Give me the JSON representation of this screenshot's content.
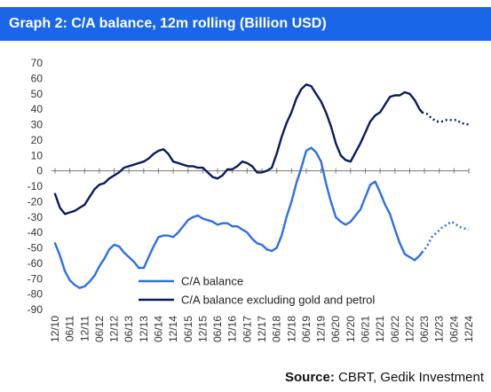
{
  "header": {
    "title": "Graph 2: C/A balance, 12m rolling (Billion USD)",
    "background_color": "#1a66e8",
    "text_color": "#ffffff"
  },
  "source": {
    "label": "Source:",
    "text": "CBRT, Gedik Investment"
  },
  "chart_data": {
    "type": "line",
    "title": "Graph 2: C/A balance, 12m rolling (Billion USD)",
    "xlabel": "",
    "ylabel": "",
    "ylim": [
      -90,
      70
    ],
    "ytick_step": 10,
    "grid": false,
    "legend_position": "bottom-center",
    "x_start": "12/10",
    "x_end": "12/24",
    "x_ticks": [
      "12/10",
      "06/11",
      "12/11",
      "06/12",
      "12/12",
      "06/13",
      "12/13",
      "06/14",
      "12/14",
      "06/15",
      "12/15",
      "06/16",
      "12/16",
      "06/17",
      "12/17",
      "06/18",
      "12/18",
      "06/19",
      "12/19",
      "06/20",
      "12/20",
      "06/21",
      "12/21",
      "06/22",
      "12/22",
      "06/23",
      "12/23",
      "06/24",
      "12/24"
    ],
    "series": [
      {
        "name": "C/A balance",
        "color": "#2e6fe6",
        "forecast_from": "05/23",
        "points": [
          [
            "12/10",
            -47
          ],
          [
            "02/11",
            -55
          ],
          [
            "04/11",
            -65
          ],
          [
            "06/11",
            -71
          ],
          [
            "08/11",
            -74
          ],
          [
            "10/11",
            -76
          ],
          [
            "12/11",
            -75
          ],
          [
            "02/12",
            -72
          ],
          [
            "04/12",
            -68
          ],
          [
            "06/12",
            -62
          ],
          [
            "08/12",
            -57
          ],
          [
            "10/12",
            -51
          ],
          [
            "12/12",
            -48
          ],
          [
            "02/13",
            -49
          ],
          [
            "04/13",
            -53
          ],
          [
            "06/13",
            -56
          ],
          [
            "08/13",
            -59
          ],
          [
            "10/13",
            -63
          ],
          [
            "12/13",
            -63
          ],
          [
            "02/14",
            -56
          ],
          [
            "04/14",
            -49
          ],
          [
            "06/14",
            -43
          ],
          [
            "08/14",
            -42
          ],
          [
            "10/14",
            -42
          ],
          [
            "12/14",
            -43
          ],
          [
            "02/15",
            -40
          ],
          [
            "04/15",
            -36
          ],
          [
            "06/15",
            -32
          ],
          [
            "08/15",
            -30
          ],
          [
            "10/15",
            -29
          ],
          [
            "12/15",
            -31
          ],
          [
            "02/16",
            -32
          ],
          [
            "04/16",
            -33
          ],
          [
            "06/16",
            -35
          ],
          [
            "08/16",
            -34
          ],
          [
            "10/16",
            -34
          ],
          [
            "12/16",
            -36
          ],
          [
            "02/17",
            -36
          ],
          [
            "04/17",
            -38
          ],
          [
            "06/17",
            -40
          ],
          [
            "08/17",
            -44
          ],
          [
            "10/17",
            -47
          ],
          [
            "12/17",
            -48
          ],
          [
            "02/18",
            -51
          ],
          [
            "04/18",
            -52
          ],
          [
            "06/18",
            -50
          ],
          [
            "08/18",
            -42
          ],
          [
            "10/18",
            -30
          ],
          [
            "12/18",
            -20
          ],
          [
            "02/19",
            -8
          ],
          [
            "04/19",
            2
          ],
          [
            "06/19",
            13
          ],
          [
            "08/19",
            15
          ],
          [
            "10/19",
            12
          ],
          [
            "12/19",
            6
          ],
          [
            "02/20",
            -8
          ],
          [
            "04/20",
            -20
          ],
          [
            "06/20",
            -30
          ],
          [
            "08/20",
            -33
          ],
          [
            "10/20",
            -35
          ],
          [
            "12/20",
            -33
          ],
          [
            "02/21",
            -29
          ],
          [
            "04/21",
            -25
          ],
          [
            "06/21",
            -17
          ],
          [
            "08/21",
            -9
          ],
          [
            "10/21",
            -7
          ],
          [
            "12/21",
            -14
          ],
          [
            "02/22",
            -22
          ],
          [
            "04/22",
            -28
          ],
          [
            "06/22",
            -38
          ],
          [
            "08/22",
            -47
          ],
          [
            "10/22",
            -54
          ],
          [
            "12/22",
            -56
          ],
          [
            "02/23",
            -58
          ],
          [
            "04/23",
            -55
          ],
          [
            "05/23",
            -53
          ],
          [
            "07/23",
            -49
          ],
          [
            "09/23",
            -43
          ],
          [
            "11/23",
            -40
          ],
          [
            "01/24",
            -37
          ],
          [
            "03/24",
            -35
          ],
          [
            "05/24",
            -33
          ],
          [
            "07/24",
            -35
          ],
          [
            "09/24",
            -37
          ],
          [
            "12/24",
            -38
          ]
        ]
      },
      {
        "name": "C/A balance excluding gold and petrol",
        "color": "#0b1b5e",
        "forecast_from": "05/23",
        "points": [
          [
            "12/10",
            -15
          ],
          [
            "02/11",
            -24
          ],
          [
            "04/11",
            -28
          ],
          [
            "06/11",
            -27
          ],
          [
            "08/11",
            -26
          ],
          [
            "10/11",
            -24
          ],
          [
            "12/11",
            -22
          ],
          [
            "02/12",
            -17
          ],
          [
            "04/12",
            -12
          ],
          [
            "06/12",
            -9
          ],
          [
            "08/12",
            -8
          ],
          [
            "10/12",
            -5
          ],
          [
            "12/12",
            -3
          ],
          [
            "02/13",
            -1
          ],
          [
            "04/13",
            2
          ],
          [
            "06/13",
            3
          ],
          [
            "08/13",
            4
          ],
          [
            "10/13",
            5
          ],
          [
            "12/13",
            6
          ],
          [
            "02/14",
            8
          ],
          [
            "04/14",
            11
          ],
          [
            "06/14",
            13
          ],
          [
            "08/14",
            14
          ],
          [
            "10/14",
            11
          ],
          [
            "12/14",
            6
          ],
          [
            "02/15",
            5
          ],
          [
            "04/15",
            4
          ],
          [
            "06/15",
            3
          ],
          [
            "08/15",
            3
          ],
          [
            "10/15",
            2
          ],
          [
            "12/15",
            2
          ],
          [
            "02/16",
            -1
          ],
          [
            "04/16",
            -4
          ],
          [
            "06/16",
            -5
          ],
          [
            "08/16",
            -3
          ],
          [
            "10/16",
            1
          ],
          [
            "12/16",
            1
          ],
          [
            "02/17",
            3
          ],
          [
            "04/17",
            6
          ],
          [
            "06/17",
            5
          ],
          [
            "08/17",
            3
          ],
          [
            "10/17",
            -1
          ],
          [
            "12/17",
            -1
          ],
          [
            "02/18",
            0
          ],
          [
            "04/18",
            2
          ],
          [
            "06/18",
            11
          ],
          [
            "08/18",
            22
          ],
          [
            "10/18",
            31
          ],
          [
            "12/18",
            38
          ],
          [
            "02/19",
            47
          ],
          [
            "04/19",
            53
          ],
          [
            "06/19",
            56
          ],
          [
            "08/19",
            55
          ],
          [
            "10/19",
            50
          ],
          [
            "12/19",
            45
          ],
          [
            "02/20",
            38
          ],
          [
            "04/20",
            29
          ],
          [
            "06/20",
            18
          ],
          [
            "08/20",
            10
          ],
          [
            "10/20",
            7
          ],
          [
            "12/20",
            6
          ],
          [
            "02/21",
            12
          ],
          [
            "04/21",
            18
          ],
          [
            "06/21",
            25
          ],
          [
            "08/21",
            32
          ],
          [
            "10/21",
            36
          ],
          [
            "12/21",
            38
          ],
          [
            "02/22",
            43
          ],
          [
            "04/22",
            48
          ],
          [
            "06/22",
            49
          ],
          [
            "08/22",
            49
          ],
          [
            "10/22",
            51
          ],
          [
            "12/22",
            50
          ],
          [
            "02/23",
            46
          ],
          [
            "04/23",
            40
          ],
          [
            "05/23",
            38
          ],
          [
            "07/23",
            37
          ],
          [
            "09/23",
            34
          ],
          [
            "11/23",
            32
          ],
          [
            "01/24",
            32
          ],
          [
            "03/24",
            33
          ],
          [
            "05/24",
            33
          ],
          [
            "07/24",
            33
          ],
          [
            "09/24",
            31
          ],
          [
            "12/24",
            30
          ]
        ]
      }
    ]
  }
}
